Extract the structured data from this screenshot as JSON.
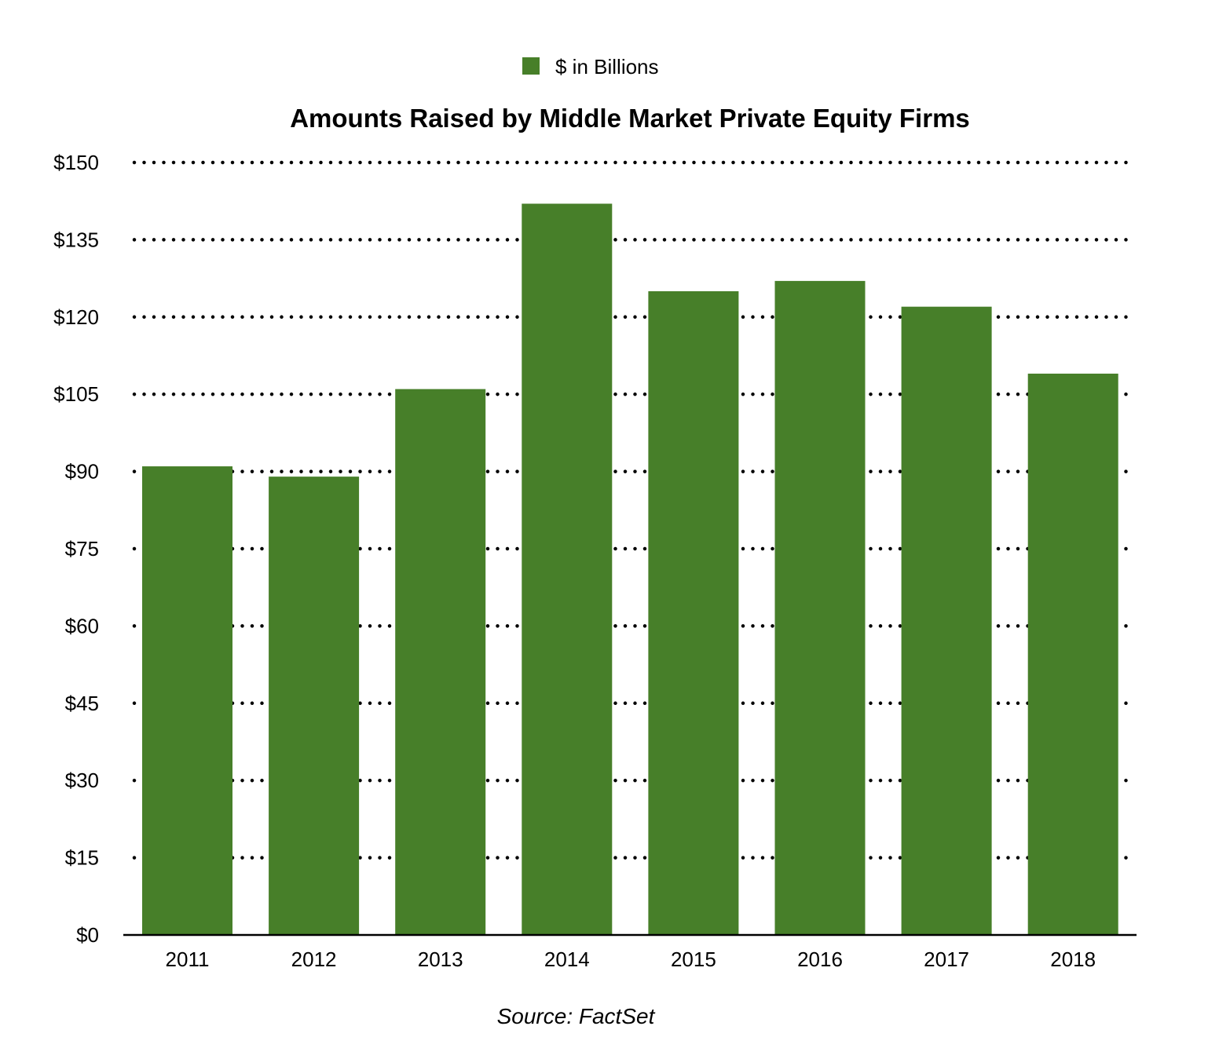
{
  "chart_data": {
    "type": "bar",
    "title": "Amounts Raised by Middle Market Private Equity Firms",
    "source": "Source: FactSet",
    "categories": [
      "2011",
      "2012",
      "2013",
      "2014",
      "2015",
      "2016",
      "2017",
      "2018"
    ],
    "series": [
      {
        "name": "$ in Billions",
        "values": [
          91,
          89,
          106,
          142,
          125,
          127,
          122,
          109
        ]
      }
    ],
    "ylim": [
      0,
      150
    ],
    "yticks": [
      0,
      15,
      30,
      45,
      60,
      75,
      90,
      105,
      120,
      135,
      150
    ],
    "ytick_labels": [
      "$0",
      "$15",
      "$30",
      "$45",
      "$60",
      "$75",
      "$90",
      "$105",
      "$120",
      "$135",
      "$150"
    ],
    "grid": "dotted-horizontal",
    "legend_position": "top-center",
    "colors": {
      "bar": "#477f29",
      "grid": "#000000",
      "axis": "#000000"
    }
  }
}
